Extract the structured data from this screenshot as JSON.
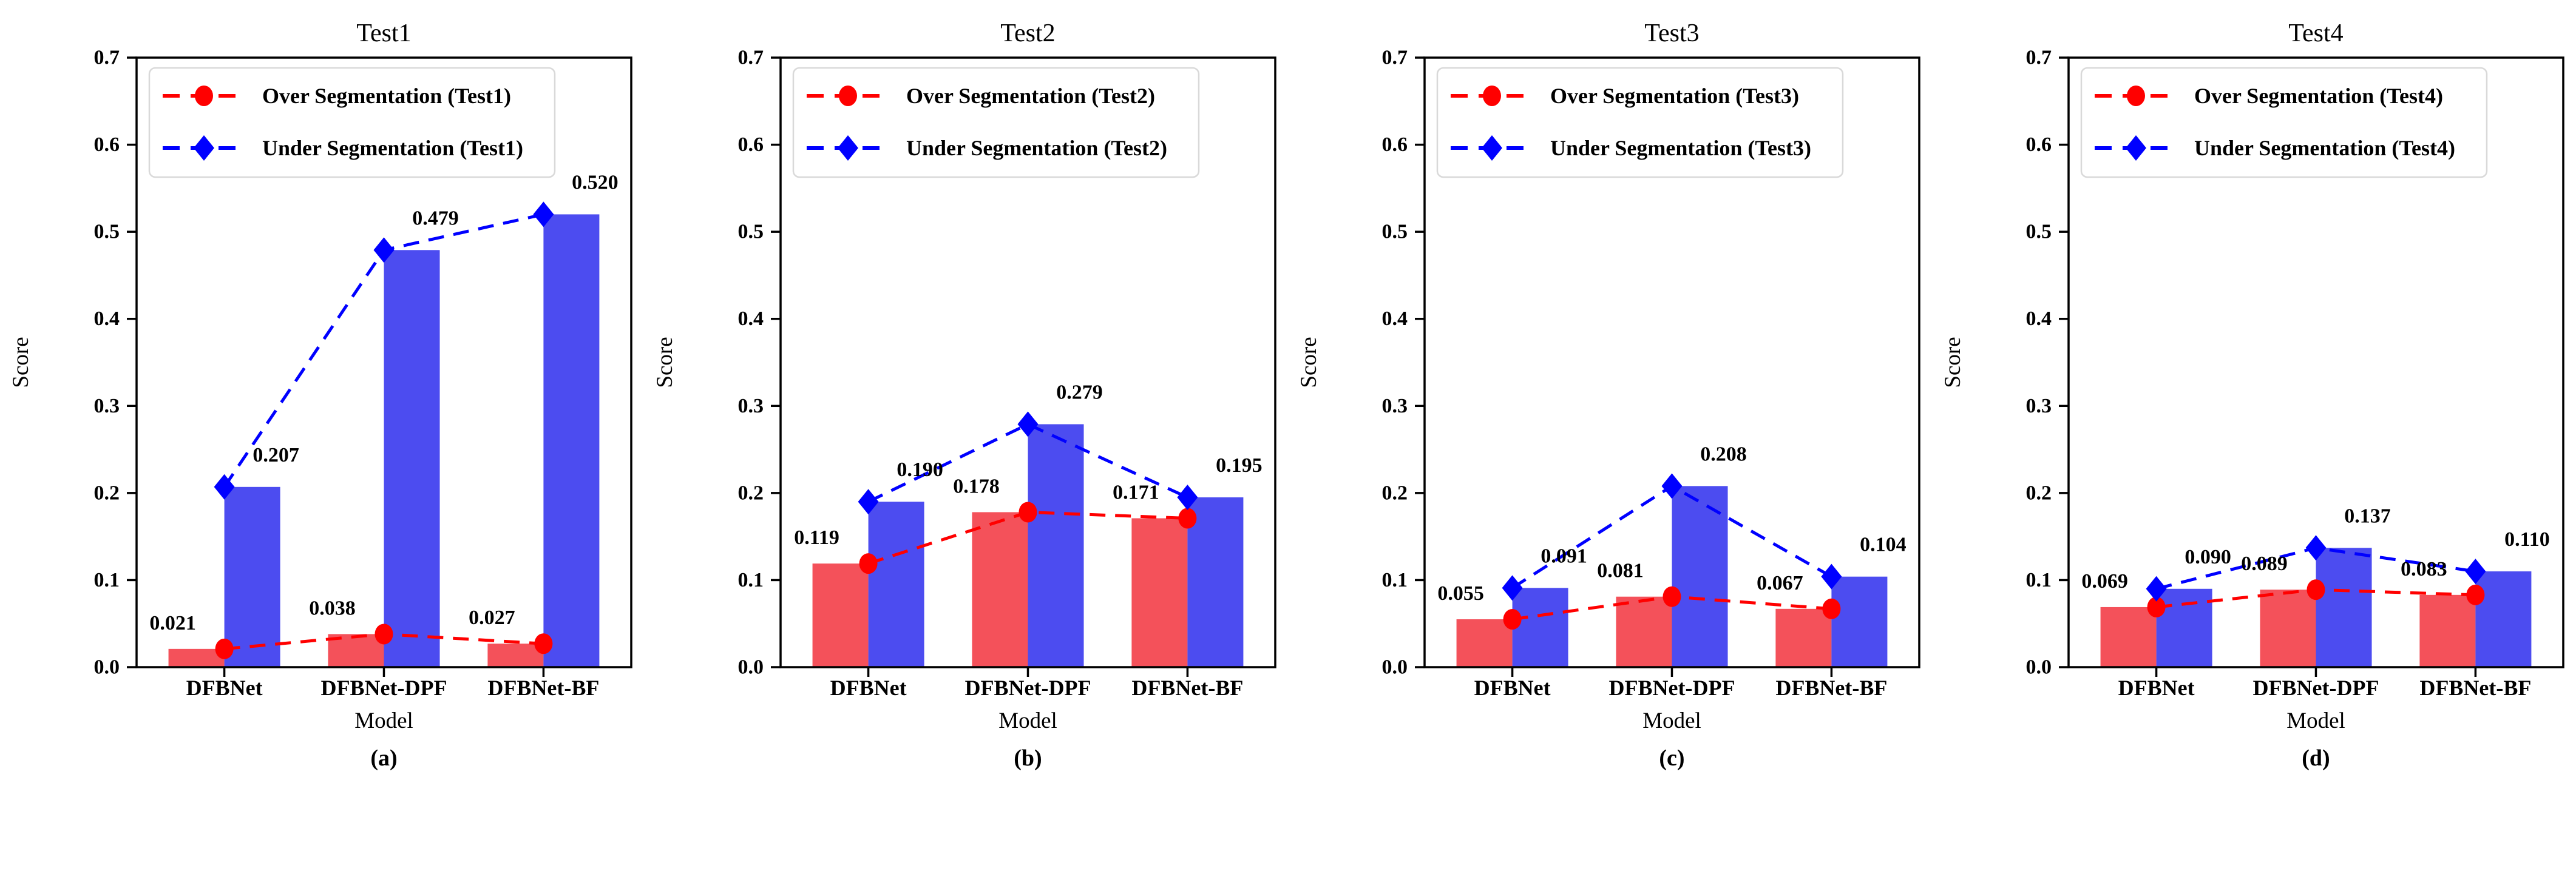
{
  "figure_name": "segmentation-scores-figure",
  "chart_data": [
    {
      "type": "bar",
      "title": "Test1",
      "caption": "(a)",
      "xlabel": "Model",
      "ylabel": "Score",
      "ylim": [
        0.0,
        0.7
      ],
      "ytick_step": 0.1,
      "grid": false,
      "legend_position": "upper-left",
      "categories": [
        "DFBNet",
        "DFBNet-DPF",
        "DFBNet-BF"
      ],
      "series": [
        {
          "name": "Over Segmentation (Test1)",
          "role": "over-segmentation",
          "marker": "circle",
          "line_color": "#ff0000",
          "bar_color": "#f4515a",
          "values": [
            0.021,
            0.038,
            0.027
          ]
        },
        {
          "name": "Under Segmentation (Test1)",
          "role": "under-segmentation",
          "marker": "diamond",
          "line_color": "#0000ff",
          "bar_color": "#4c4cf0",
          "values": [
            0.207,
            0.479,
            0.52
          ]
        }
      ]
    },
    {
      "type": "bar",
      "title": "Test2",
      "caption": "(b)",
      "xlabel": "Model",
      "ylabel": "Score",
      "ylim": [
        0.0,
        0.7
      ],
      "ytick_step": 0.1,
      "grid": false,
      "legend_position": "upper-left",
      "categories": [
        "DFBNet",
        "DFBNet-DPF",
        "DFBNet-BF"
      ],
      "series": [
        {
          "name": "Over Segmentation (Test2)",
          "role": "over-segmentation",
          "marker": "circle",
          "line_color": "#ff0000",
          "bar_color": "#f4515a",
          "values": [
            0.119,
            0.178,
            0.171
          ]
        },
        {
          "name": "Under Segmentation (Test2)",
          "role": "under-segmentation",
          "marker": "diamond",
          "line_color": "#0000ff",
          "bar_color": "#4c4cf0",
          "values": [
            0.19,
            0.279,
            0.195
          ]
        }
      ]
    },
    {
      "type": "bar",
      "title": "Test3",
      "caption": "(c)",
      "xlabel": "Model",
      "ylabel": "Score",
      "ylim": [
        0.0,
        0.7
      ],
      "ytick_step": 0.1,
      "grid": false,
      "legend_position": "upper-left",
      "categories": [
        "DFBNet",
        "DFBNet-DPF",
        "DFBNet-BF"
      ],
      "series": [
        {
          "name": "Over Segmentation (Test3)",
          "role": "over-segmentation",
          "marker": "circle",
          "line_color": "#ff0000",
          "bar_color": "#f4515a",
          "values": [
            0.055,
            0.081,
            0.067
          ]
        },
        {
          "name": "Under Segmentation (Test3)",
          "role": "under-segmentation",
          "marker": "diamond",
          "line_color": "#0000ff",
          "bar_color": "#4c4cf0",
          "values": [
            0.091,
            0.208,
            0.104
          ]
        }
      ]
    },
    {
      "type": "bar",
      "title": "Test4",
      "caption": "(d)",
      "xlabel": "Model",
      "ylabel": "Score",
      "ylim": [
        0.0,
        0.7
      ],
      "ytick_step": 0.1,
      "grid": false,
      "legend_position": "upper-left",
      "categories": [
        "DFBNet",
        "DFBNet-DPF",
        "DFBNet-BF"
      ],
      "series": [
        {
          "name": "Over Segmentation (Test4)",
          "role": "over-segmentation",
          "marker": "circle",
          "line_color": "#ff0000",
          "bar_color": "#f4515a",
          "values": [
            0.069,
            0.089,
            0.083
          ]
        },
        {
          "name": "Under Segmentation (Test4)",
          "role": "under-segmentation",
          "marker": "diamond",
          "line_color": "#0000ff",
          "bar_color": "#4c4cf0",
          "values": [
            0.09,
            0.137,
            0.11
          ]
        }
      ]
    }
  ],
  "style": {
    "axis_color": "#000000",
    "legend_border_color": "#d9d9d9",
    "legend_fill": "#ffffff",
    "background": "#ffffff"
  }
}
